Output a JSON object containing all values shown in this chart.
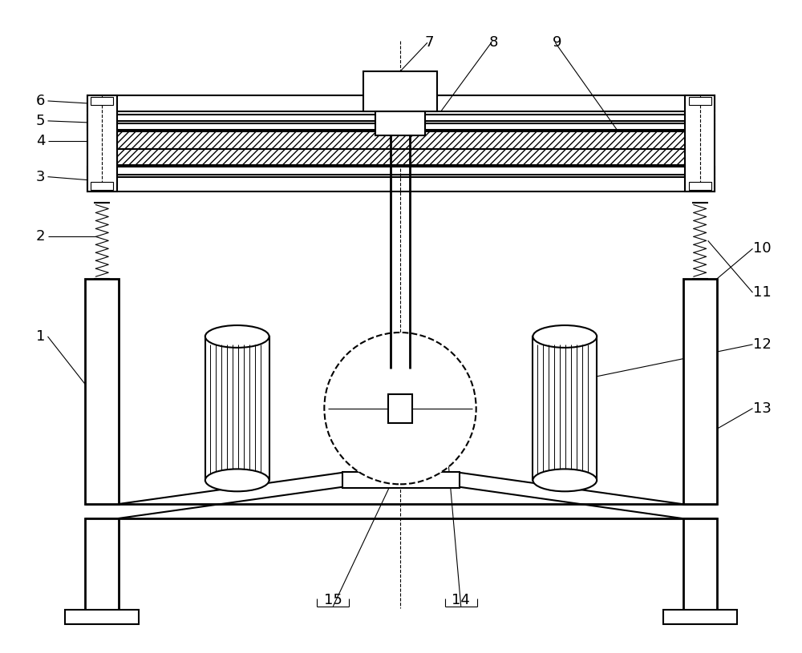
{
  "bg_color": "#ffffff",
  "line_color": "#000000",
  "lw": 1.5,
  "lw_thin": 0.8,
  "lw_thick": 2.0,
  "fig_width": 10.0,
  "fig_height": 8.15
}
